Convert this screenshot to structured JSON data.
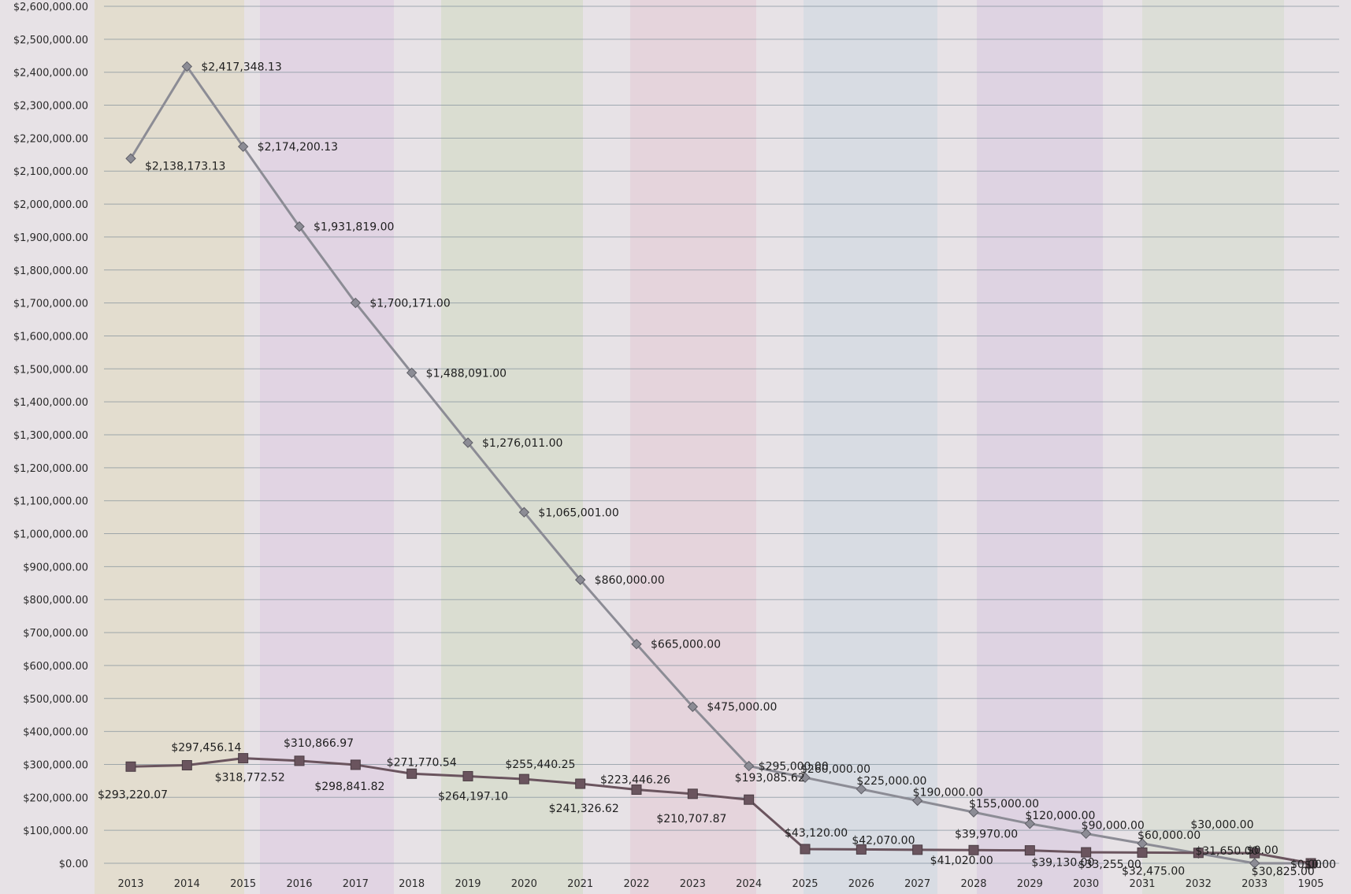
{
  "chart_data": {
    "type": "line",
    "title": "",
    "xlabel": "",
    "ylabel": "",
    "categories": [
      "2013",
      "2014",
      "2015",
      "2016",
      "2017",
      "2018",
      "2019",
      "2020",
      "2021",
      "2022",
      "2023",
      "2024",
      "2025",
      "2026",
      "2027",
      "2028",
      "2029",
      "2030",
      "2031",
      "2032",
      "2033",
      "1905"
    ],
    "ylim": [
      0,
      2600000
    ],
    "y_tick_step": 100000,
    "y_tick_format": "currency",
    "grid": true,
    "series": [
      {
        "name": "",
        "color": "#8c8c95",
        "marker": "diamond",
        "values": [
          2138173.13,
          2417348.13,
          2174200.13,
          1931819.0,
          1700171.0,
          1488091.0,
          1276011.0,
          1065001.0,
          860000.0,
          665000.0,
          475000.0,
          295000.0,
          260000.0,
          225000.0,
          190000.0,
          155000.0,
          120000.0,
          90000.0,
          60000.0,
          30000.0,
          0.0,
          0.0
        ],
        "labels": [
          "$2,138,173.13",
          "$2,417,348.13",
          "$2,174,200.13",
          "$1,931,819.00",
          "$1,700,171.00",
          "$1,488,091.00",
          "$1,276,011.00",
          "$1,065,001.00",
          "$860,000.00",
          "$665,000.00",
          "$475,000.00",
          "$295,000.00",
          "$260,000.00",
          "$225,000.00",
          "$190,000.00",
          "$155,000.00",
          "$120,000.00",
          "$90,000.00",
          "$60,000.00",
          "$30,000.00",
          "$0.00",
          "$0.00"
        ]
      },
      {
        "name": "",
        "color": "#6a545e",
        "marker": "square",
        "values": [
          293220.07,
          297456.14,
          318772.52,
          310866.97,
          298841.82,
          271770.54,
          264197.1,
          255440.25,
          241326.62,
          223446.26,
          210707.87,
          193085.62,
          43120.0,
          42070.0,
          41020.0,
          39970.0,
          39130.0,
          33255.0,
          32475.0,
          31650.0,
          30825.0,
          0.0
        ],
        "labels": [
          "$293,220.07",
          "$297,456.14",
          "$318,772.52",
          "$310,866.97",
          "$298,841.82",
          "$271,770.54",
          "$264,197.10",
          "$255,440.25",
          "$241,326.62",
          "$223,446.26",
          "$210,707.87",
          "$193,085.62",
          "$43,120.00",
          "$42,070.00",
          "$41,020.00",
          "$39,970.00",
          "$39,130.00",
          "$33,255.00",
          "$32,475.00",
          "$31,650.00",
          "$30,825.00",
          "$0.00"
        ]
      }
    ]
  }
}
